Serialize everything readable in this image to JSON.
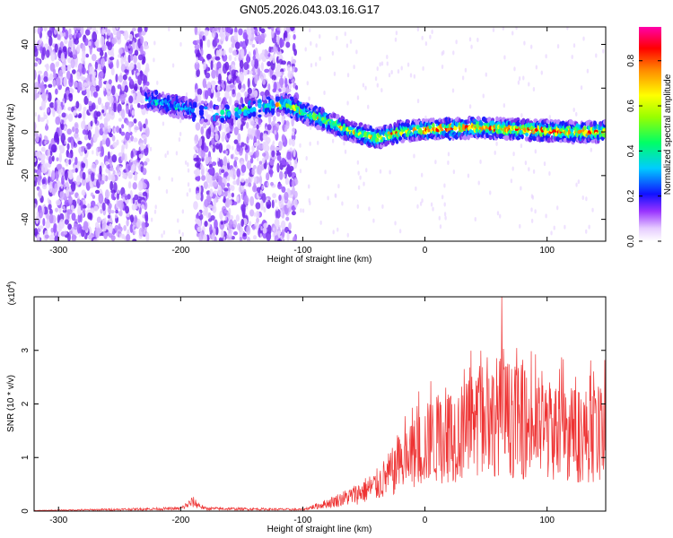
{
  "title": "GN05.2026.043.03.16.G17",
  "colors": {
    "snr_line": "#ee3333",
    "frame": "#000000"
  },
  "chart_data": [
    {
      "type": "heatmap",
      "xlabel": "Height of straight line (km)",
      "ylabel": "Frequency (Hz)",
      "xlim": [
        -320,
        148
      ],
      "ylim": [
        -50,
        48
      ],
      "xticks": [
        -300,
        -200,
        -100,
        0,
        100
      ],
      "yticks": [
        -40,
        -20,
        0,
        20,
        40
      ],
      "colorbar": {
        "label": "Normalized spectral amplitude",
        "range": [
          0,
          0.95
        ],
        "ticks": [
          "0.0",
          "0.2",
          "0.4",
          "0.6",
          "0.8"
        ]
      },
      "signal_track": [
        {
          "x": -228,
          "y": 15
        },
        {
          "x": -200,
          "y": 11
        },
        {
          "x": -170,
          "y": 8
        },
        {
          "x": -115,
          "y": 13
        },
        {
          "x": -100,
          "y": 9
        },
        {
          "x": -80,
          "y": 5
        },
        {
          "x": -60,
          "y": 0
        },
        {
          "x": -40,
          "y": -3
        },
        {
          "x": -20,
          "y": 0
        },
        {
          "x": 0,
          "y": 1
        },
        {
          "x": 40,
          "y": 2
        },
        {
          "x": 80,
          "y": 1
        },
        {
          "x": 120,
          "y": 0
        },
        {
          "x": 148,
          "y": 0
        }
      ],
      "noise_regions": [
        [
          -320,
          -227
        ],
        [
          -188,
          -105
        ]
      ]
    },
    {
      "type": "line",
      "xlabel": "Height of straight line (km)",
      "ylabel": "SNR (10 * v/v)",
      "y_scale_note": "(x10^4)",
      "xlim": [
        -320,
        148
      ],
      "ylim": [
        0,
        4
      ],
      "xticks": [
        -300,
        -200,
        -100,
        0,
        100
      ],
      "yticks": [
        0,
        1,
        2,
        3
      ],
      "series": [
        {
          "envelope": [
            {
              "x": -320,
              "y": 0.01
            },
            {
              "x": -200,
              "y": 0.05
            },
            {
              "x": -190,
              "y": 0.18
            },
            {
              "x": -180,
              "y": 0.05
            },
            {
              "x": -100,
              "y": 0.03
            },
            {
              "x": -80,
              "y": 0.15
            },
            {
              "x": -60,
              "y": 0.3
            },
            {
              "x": -40,
              "y": 0.5
            },
            {
              "x": -20,
              "y": 0.9
            },
            {
              "x": 0,
              "y": 1.3
            },
            {
              "x": 20,
              "y": 1.5
            },
            {
              "x": 40,
              "y": 1.6
            },
            {
              "x": 60,
              "y": 1.9
            },
            {
              "x": 80,
              "y": 1.7
            },
            {
              "x": 100,
              "y": 1.6
            },
            {
              "x": 120,
              "y": 1.5
            },
            {
              "x": 148,
              "y": 1.5
            }
          ],
          "peak": {
            "x": 63,
            "y": 4.0
          }
        }
      ]
    }
  ]
}
